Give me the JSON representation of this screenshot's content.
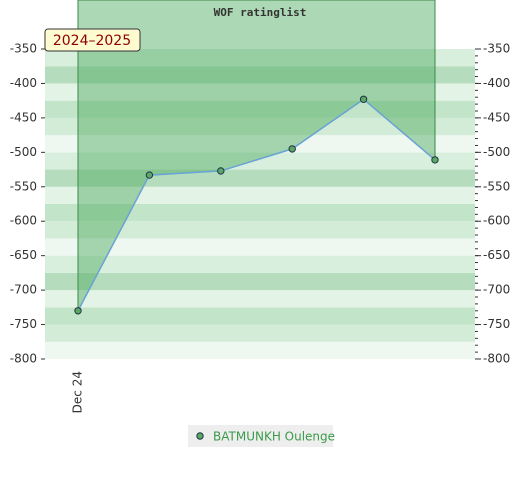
{
  "chart_data": {
    "type": "line",
    "title": "WOF ratinglist",
    "annotation": "2024–2025",
    "categories": [
      "Dec 24",
      null,
      null,
      null,
      null,
      null
    ],
    "series": [
      {
        "name": "BATMUNKH Oulenge",
        "color": "#6aa3d6",
        "marker_color": "#5aa866",
        "fill_color": "#4aa85a",
        "values": [
          -730,
          -533,
          -527,
          -495,
          -423,
          -511
        ]
      }
    ],
    "ylim": [
      -800,
      -350
    ],
    "yticks": [
      -800,
      -750,
      -700,
      -650,
      -600,
      -550,
      -500,
      -450,
      -400,
      -350
    ],
    "legend": "bottom"
  }
}
